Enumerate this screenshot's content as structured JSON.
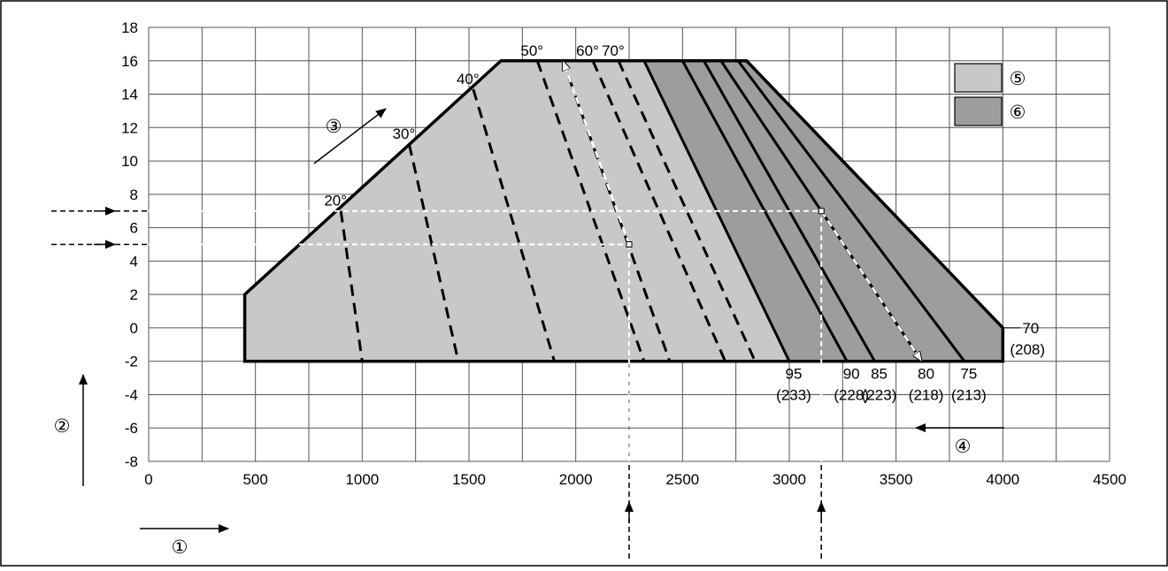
{
  "chart_data": {
    "type": "area",
    "title": "",
    "xlabel": "",
    "ylabel": "",
    "xlim": [
      0,
      4500
    ],
    "ylim": [
      -8,
      18
    ],
    "grid": true,
    "x_ticks": [
      0,
      500,
      1000,
      1500,
      2000,
      2500,
      3000,
      3500,
      4000,
      4500
    ],
    "y_ticks": [
      -8,
      -6,
      -4,
      -2,
      0,
      2,
      4,
      6,
      8,
      10,
      12,
      14,
      16,
      18
    ],
    "x_tick_labels": [
      "0",
      "500",
      "1000",
      "1500",
      "2000",
      "2500",
      "3000",
      "3500",
      "4000",
      "4500"
    ],
    "y_tick_labels": [
      "-8",
      "-6",
      "-4",
      "-2",
      "0",
      "2",
      "4",
      "6",
      "8",
      "10",
      "12",
      "14",
      "16",
      "18"
    ],
    "regions": [
      {
        "name": "⑤",
        "color": "#c8c8c8",
        "points": [
          [
            450,
            -2
          ],
          [
            450,
            2
          ],
          [
            1650,
            16
          ],
          [
            2320,
            16
          ],
          [
            3000,
            -2
          ]
        ]
      },
      {
        "name": "⑥",
        "color": "#9d9d9d",
        "points": [
          [
            3000,
            -2
          ],
          [
            2320,
            16
          ],
          [
            2800,
            16
          ],
          [
            4000,
            0
          ],
          [
            4000,
            -2
          ]
        ]
      }
    ],
    "envelope": [
      [
        450,
        -2
      ],
      [
        450,
        2
      ],
      [
        1650,
        16
      ],
      [
        2800,
        16
      ],
      [
        4000,
        0
      ],
      [
        4000,
        -2
      ]
    ],
    "angle_lines": [
      {
        "label": "20°",
        "top": [
          900,
          7
        ],
        "bottom": [
          1000,
          -2
        ]
      },
      {
        "label": "30°",
        "top": [
          1220,
          11
        ],
        "bottom": [
          1450,
          -2
        ]
      },
      {
        "label": "40°",
        "top": [
          1520,
          14.3
        ],
        "bottom": [
          1900,
          -2
        ]
      },
      {
        "label": "50°",
        "top": [
          1820,
          16
        ],
        "bottom": [
          2320,
          -2
        ]
      },
      {
        "label": "",
        "top": [
          1940,
          16
        ],
        "bottom": [
          2440,
          -2
        ]
      },
      {
        "label": "60°",
        "top": [
          2080,
          16
        ],
        "bottom": [
          2700,
          -2
        ]
      },
      {
        "label": "70°",
        "top": [
          2200,
          16
        ],
        "bottom": [
          2840,
          -2
        ]
      }
    ],
    "temperature_lines": [
      {
        "label": "95",
        "sublabel": "(233)",
        "top": [
          2320,
          16
        ],
        "bottom": [
          3000,
          -2
        ]
      },
      {
        "label": "90",
        "sublabel": "(228)",
        "top": [
          2500,
          16
        ],
        "bottom": [
          3270,
          -2
        ]
      },
      {
        "label": "85",
        "sublabel": "(223)",
        "top": [
          2600,
          16
        ],
        "bottom": [
          3400,
          -2
        ]
      },
      {
        "label": "80",
        "sublabel": "(218)",
        "top": [
          2680,
          16
        ],
        "bottom": [
          3620,
          -2
        ]
      },
      {
        "label": "75",
        "sublabel": "(213)",
        "top": [
          2760,
          16
        ],
        "bottom": [
          3820,
          -2
        ]
      },
      {
        "label": "70",
        "sublabel": "(208)",
        "top": [
          2800,
          16
        ],
        "bottom": [
          4000,
          0
        ]
      }
    ],
    "examples": [
      {
        "y": 5,
        "x": 2250,
        "target": [
          1940,
          16
        ]
      },
      {
        "y": 7,
        "x": 3150,
        "target": [
          3620,
          -2
        ]
      }
    ],
    "legend": [
      {
        "marker": "⑤",
        "color": "#c8c8c8"
      },
      {
        "marker": "⑥",
        "color": "#9d9d9d"
      }
    ],
    "callouts": {
      "x_axis": "①",
      "y_axis": "②",
      "angle": "③",
      "temperature": "④"
    }
  }
}
